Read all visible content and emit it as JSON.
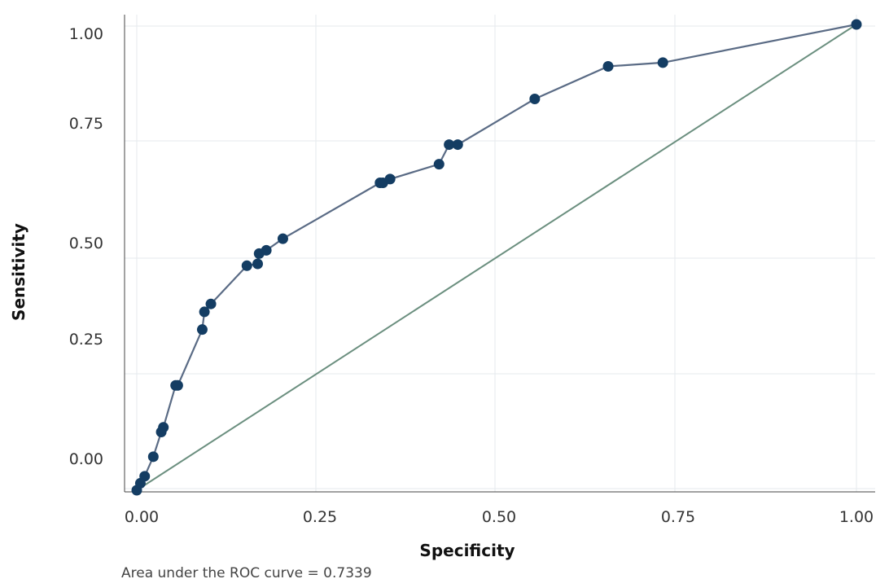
{
  "chart_data": {
    "type": "line",
    "xlabel": "Specificity",
    "ylabel": "Sensitivity",
    "xlim": [
      0,
      1
    ],
    "ylim": [
      0,
      1
    ],
    "grid": true,
    "x_ticks": [
      "0.00",
      "0.25",
      "0.50",
      "0.75",
      "1.00"
    ],
    "y_ticks": [
      "0.00",
      "0.25",
      "0.50",
      "0.75",
      "1.00"
    ],
    "note": "Area under the ROC curve = 0.7339",
    "colors": {
      "curve": "#5a6b85",
      "marker": "#143d63",
      "reference": "#6b8f7f",
      "grid": "#e6eaee"
    },
    "series": [
      {
        "x": [
          0.0,
          0.005,
          0.011,
          0.023,
          0.034,
          0.037,
          0.054,
          0.057,
          0.091,
          0.094,
          0.103,
          0.153,
          0.168,
          0.17,
          0.18,
          0.203,
          0.338,
          0.342,
          0.352,
          0.42,
          0.434,
          0.446,
          0.553,
          0.655,
          0.731,
          1.0
        ],
        "y": [
          0.0,
          0.015,
          0.03,
          0.072,
          0.125,
          0.135,
          0.225,
          0.225,
          0.345,
          0.383,
          0.4,
          0.482,
          0.486,
          0.508,
          0.515,
          0.54,
          0.66,
          0.66,
          0.668,
          0.7,
          0.742,
          0.742,
          0.84,
          0.91,
          0.918,
          1.0
        ]
      },
      {
        "x": [
          0,
          1
        ],
        "y": [
          0,
          1
        ]
      }
    ]
  }
}
